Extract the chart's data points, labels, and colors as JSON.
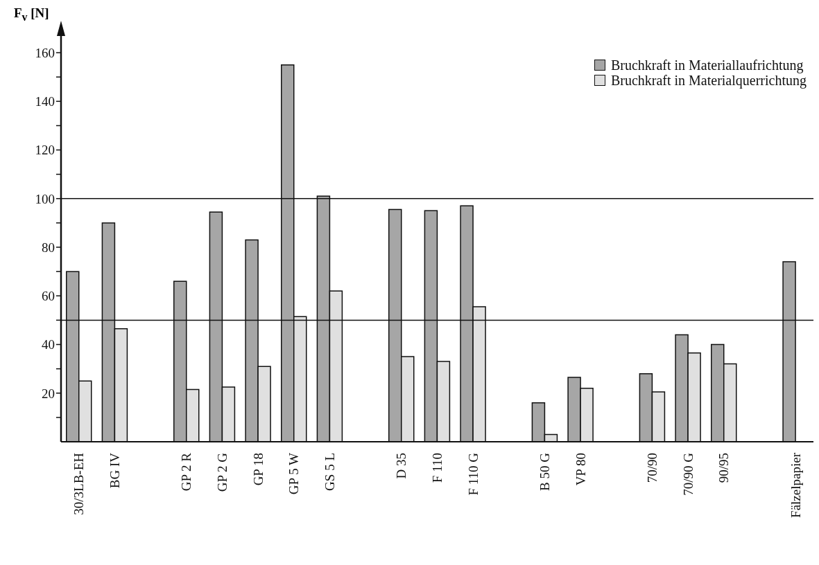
{
  "chart_data": {
    "type": "bar",
    "ylabel": "F$_{v}$ [N]",
    "categories": [
      "30/3LB-EH",
      "BG IV",
      null,
      "GP 2 R",
      "GP 2 G",
      "GP 18",
      "GP 5 W",
      "GS 5 L",
      null,
      "D 35",
      "F 110",
      "F 110 G",
      null,
      "B 50 G",
      "VP 80",
      null,
      "70/90",
      "70/90 G",
      "90/95",
      null,
      "Fälzelpapier"
    ],
    "series": [
      {
        "name": "Bruchkraft in Materiallaufrichtung",
        "color": "#a6a6a6",
        "values": [
          70,
          90,
          null,
          66,
          94.5,
          83,
          155,
          101,
          null,
          95.5,
          95,
          97,
          null,
          16,
          26.5,
          null,
          28,
          44,
          40,
          null,
          74
        ]
      },
      {
        "name": "Bruchkraft in Materialquerrichtung",
        "color": "#e0e0e0",
        "values": [
          25,
          46.5,
          null,
          21.5,
          22.5,
          31,
          51.5,
          62,
          null,
          35,
          33,
          55.5,
          null,
          3,
          22,
          null,
          20.5,
          36.5,
          32,
          null,
          null
        ]
      }
    ],
    "ylim": [
      0,
      168
    ],
    "yticks": [
      {
        "value": 10,
        "label": null
      },
      20,
      {
        "value": 30,
        "label": null
      },
      40,
      {
        "value": 50,
        "label": null
      },
      60,
      {
        "value": 70,
        "label": null
      },
      80,
      {
        "value": 90,
        "label": null
      },
      100,
      {
        "value": 110,
        "label": null
      },
      120,
      {
        "value": 130,
        "label": null
      },
      140,
      {
        "value": 150,
        "label": null
      },
      160
    ],
    "ref_lines": [
      {
        "axis": "y",
        "value": 100,
        "label": null
      },
      {
        "axis": "y",
        "value": 50,
        "label": null
      }
    ],
    "legend": "top right",
    "grid": false
  }
}
